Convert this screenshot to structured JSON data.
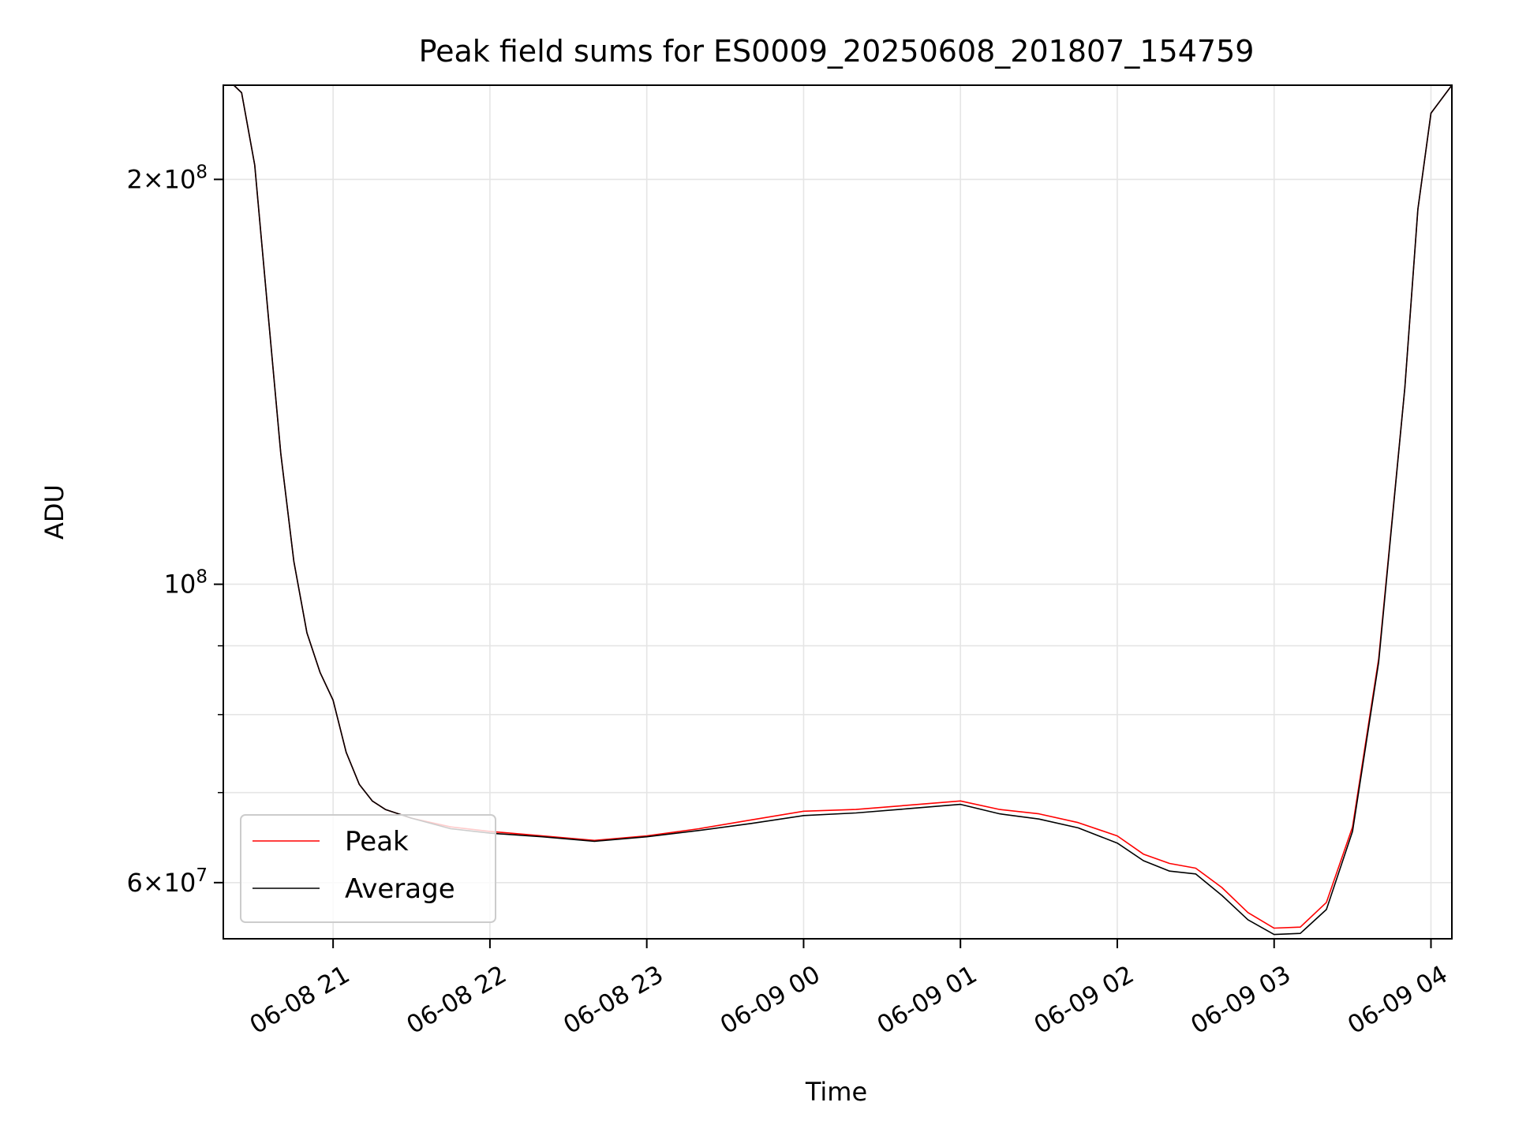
{
  "chart_data": {
    "type": "line",
    "title": "Peak field sums for ES0009_20250608_201807_154759",
    "xlabel": "Time",
    "ylabel": "ADU",
    "y_scale": "log",
    "x_range": [
      "2025-06-08 20:18",
      "2025-06-09 04:08"
    ],
    "ylim": [
      54500000,
      235000000
    ],
    "x_ticks": [
      {
        "time": "2025-06-08 21:00",
        "label": "06-08 21"
      },
      {
        "time": "2025-06-08 22:00",
        "label": "06-08 22"
      },
      {
        "time": "2025-06-08 23:00",
        "label": "06-08 23"
      },
      {
        "time": "2025-06-09 00:00",
        "label": "06-09 00"
      },
      {
        "time": "2025-06-09 01:00",
        "label": "06-09 01"
      },
      {
        "time": "2025-06-09 02:00",
        "label": "06-09 02"
      },
      {
        "time": "2025-06-09 03:00",
        "label": "06-09 03"
      },
      {
        "time": "2025-06-09 04:00",
        "label": "06-09 04"
      }
    ],
    "y_major_ticks": [
      {
        "value": 60000000,
        "mant": "6",
        "exp": "7"
      },
      {
        "value": 100000000,
        "mant": "",
        "exp": "8"
      },
      {
        "value": 200000000,
        "mant": "2",
        "exp": "8"
      }
    ],
    "y_minor_ticks": [
      70000000,
      80000000,
      90000000
    ],
    "grid": true,
    "legend_position": "lower-left",
    "series": [
      {
        "name": "Peak",
        "color": "#ff0000",
        "x": [
          "2025-06-08 20:18",
          "2025-06-08 20:22",
          "2025-06-08 20:25",
          "2025-06-08 20:30",
          "2025-06-08 20:35",
          "2025-06-08 20:40",
          "2025-06-08 20:45",
          "2025-06-08 20:50",
          "2025-06-08 20:55",
          "2025-06-08 21:00",
          "2025-06-08 21:05",
          "2025-06-08 21:10",
          "2025-06-08 21:15",
          "2025-06-08 21:20",
          "2025-06-08 21:30",
          "2025-06-08 21:45",
          "2025-06-08 22:00",
          "2025-06-08 22:20",
          "2025-06-08 22:40",
          "2025-06-08 23:00",
          "2025-06-08 23:20",
          "2025-06-08 23:40",
          "2025-06-09 00:00",
          "2025-06-09 00:20",
          "2025-06-09 00:40",
          "2025-06-09 01:00",
          "2025-06-09 01:15",
          "2025-06-09 01:30",
          "2025-06-09 01:45",
          "2025-06-09 02:00",
          "2025-06-09 02:10",
          "2025-06-09 02:20",
          "2025-06-09 02:30",
          "2025-06-09 02:40",
          "2025-06-09 02:50",
          "2025-06-09 03:00",
          "2025-06-09 03:10",
          "2025-06-09 03:20",
          "2025-06-09 03:30",
          "2025-06-09 03:40",
          "2025-06-09 03:50",
          "2025-06-09 03:55",
          "2025-06-09 04:00",
          "2025-06-09 04:08"
        ],
        "y": [
          235000000,
          235000000,
          232000000,
          205000000,
          160000000,
          125000000,
          104000000,
          92000000,
          86000000,
          82000000,
          75000000,
          71000000,
          69000000,
          68000000,
          67000000,
          66000000,
          65500000,
          65000000,
          64500000,
          65000000,
          65800000,
          66800000,
          67800000,
          68000000,
          68500000,
          69000000,
          68000000,
          67500000,
          66500000,
          65000000,
          63000000,
          62000000,
          61500000,
          59500000,
          57000000,
          55500000,
          55600000,
          58000000,
          66000000,
          88000000,
          140000000,
          190000000,
          224000000,
          235000000
        ]
      },
      {
        "name": "Average",
        "color": "#000000",
        "x": [
          "2025-06-08 20:18",
          "2025-06-08 20:22",
          "2025-06-08 20:25",
          "2025-06-08 20:30",
          "2025-06-08 20:35",
          "2025-06-08 20:40",
          "2025-06-08 20:45",
          "2025-06-08 20:50",
          "2025-06-08 20:55",
          "2025-06-08 21:00",
          "2025-06-08 21:05",
          "2025-06-08 21:10",
          "2025-06-08 21:15",
          "2025-06-08 21:20",
          "2025-06-08 21:30",
          "2025-06-08 21:45",
          "2025-06-08 22:00",
          "2025-06-08 22:20",
          "2025-06-08 22:40",
          "2025-06-08 23:00",
          "2025-06-08 23:20",
          "2025-06-08 23:40",
          "2025-06-09 00:00",
          "2025-06-09 00:20",
          "2025-06-09 00:40",
          "2025-06-09 01:00",
          "2025-06-09 01:15",
          "2025-06-09 01:30",
          "2025-06-09 01:45",
          "2025-06-09 02:00",
          "2025-06-09 02:10",
          "2025-06-09 02:20",
          "2025-06-09 02:30",
          "2025-06-09 02:40",
          "2025-06-09 02:50",
          "2025-06-09 03:00",
          "2025-06-09 03:10",
          "2025-06-09 03:20",
          "2025-06-09 03:30",
          "2025-06-09 03:40",
          "2025-06-09 03:50",
          "2025-06-09 03:55",
          "2025-06-09 04:00",
          "2025-06-09 04:08"
        ],
        "y": [
          235000000,
          235000000,
          232000000,
          205000000,
          160000000,
          125000000,
          104000000,
          92000000,
          86000000,
          82000000,
          75000000,
          71000000,
          69000000,
          68000000,
          67000000,
          65800000,
          65300000,
          64900000,
          64400000,
          64900000,
          65600000,
          66400000,
          67300000,
          67600000,
          68100000,
          68600000,
          67500000,
          66900000,
          65900000,
          64200000,
          62300000,
          61200000,
          60900000,
          58700000,
          56300000,
          54900000,
          55000000,
          57300000,
          65500000,
          87500000,
          140000000,
          190000000,
          224000000,
          235000000
        ]
      }
    ]
  }
}
